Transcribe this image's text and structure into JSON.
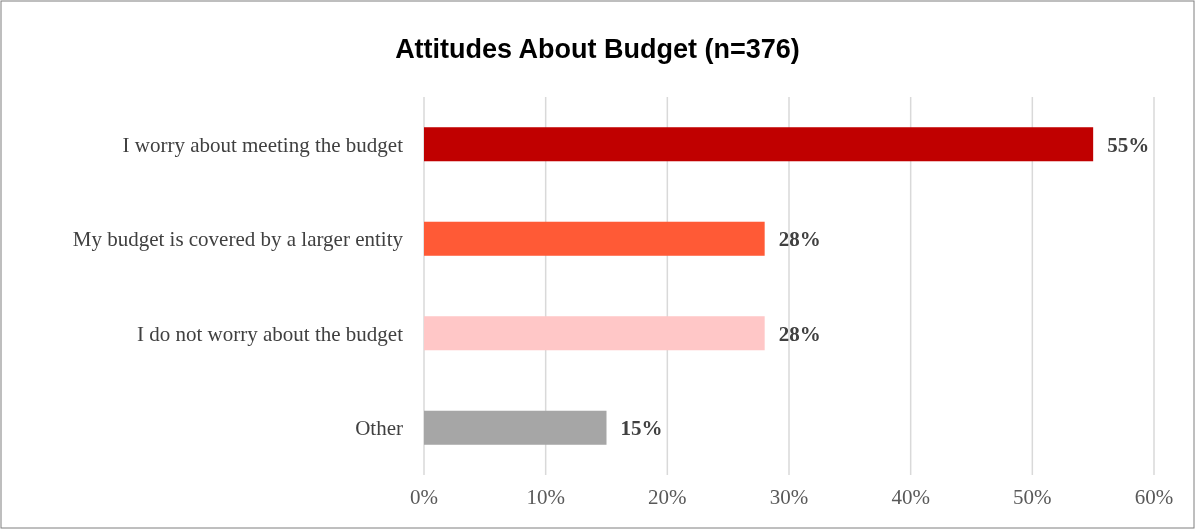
{
  "chart_data": {
    "type": "bar",
    "orientation": "horizontal",
    "title": "Attitudes About Budget (n=376)",
    "categories": [
      "I worry about meeting the budget",
      "My budget is covered by a larger entity",
      "I do not worry about the budget",
      "Other"
    ],
    "values": [
      55,
      28,
      28,
      15
    ],
    "colors": [
      "#c00000",
      "#ff5a36",
      "#ffc7c7",
      "#a6a6a6"
    ],
    "value_labels": [
      "55%",
      "28%",
      "28%",
      "15%"
    ],
    "xlim": [
      0,
      60
    ],
    "xticks": [
      {
        "value": 0,
        "label": "0%"
      },
      {
        "value": 10,
        "label": "10%"
      },
      {
        "value": 20,
        "label": "20%"
      },
      {
        "value": 30,
        "label": "30%"
      },
      {
        "value": 40,
        "label": "40%"
      },
      {
        "value": 50,
        "label": "50%"
      },
      {
        "value": 60,
        "label": "60%"
      }
    ],
    "grid": "x"
  }
}
